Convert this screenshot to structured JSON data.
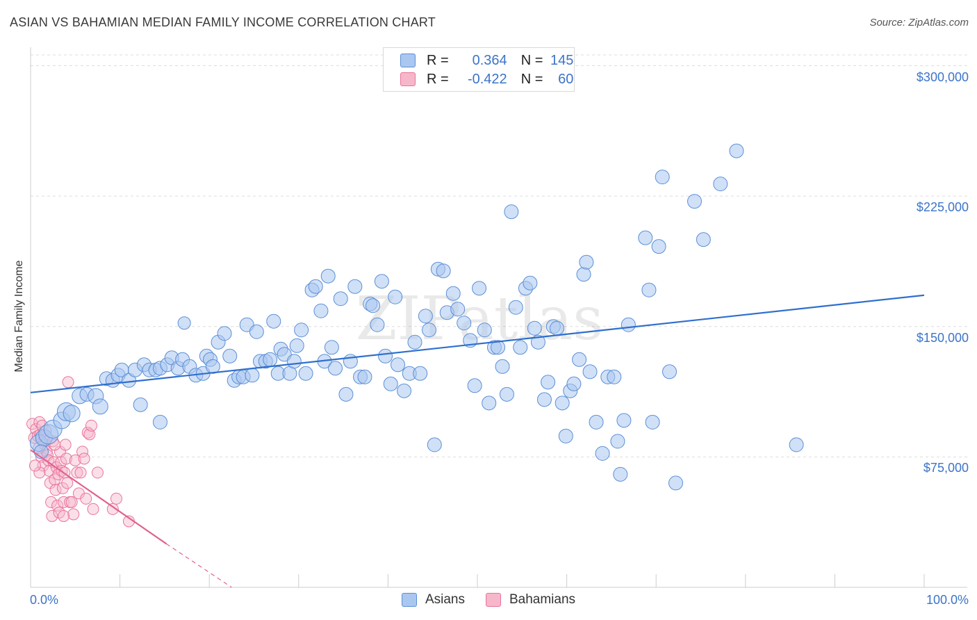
{
  "title": "ASIAN VS BAHAMIAN MEDIAN FAMILY INCOME CORRELATION CHART",
  "source": "Source: ZipAtlas.com",
  "colors": {
    "asians_fill": "#aac7f0",
    "asians_stroke": "#5b8fd6",
    "asians_line": "#2f6fce",
    "bahamians_fill": "#f7b7cb",
    "bahamians_stroke": "#e8739a",
    "bahamians_line": "#e0628f",
    "grid": "#dddddd",
    "tick_text": "#3b74c8"
  },
  "watermark": "ZIPatlas",
  "legend": {
    "items": [
      {
        "r_label": "R =",
        "r_value": "0.364",
        "n_label": "N =",
        "n_value": "145"
      },
      {
        "r_label": "R =",
        "r_value": "-0.422",
        "n_label": "N =",
        "n_value": "60"
      }
    ]
  },
  "bottom_legend": [
    "Asians",
    "Bahamians"
  ],
  "chart_data": {
    "type": "scatter",
    "title": "ASIAN VS BAHAMIAN MEDIAN FAMILY INCOME CORRELATION CHART",
    "xlabel": "",
    "ylabel": "Median Family Income",
    "xlim": [
      0,
      100
    ],
    "ylim": [
      0,
      307000
    ],
    "x_tick_labels": [
      "0.0%",
      "100.0%"
    ],
    "y_ticks": [
      75000,
      150000,
      225000,
      300000
    ],
    "y_tick_labels": [
      "$75,000",
      "$150,000",
      "$225,000",
      "$300,000"
    ],
    "grid": true,
    "series": [
      {
        "name": "Asians",
        "r": 0.364,
        "n": 145,
        "trend": {
          "x": [
            0,
            100
          ],
          "y": [
            112000,
            168000
          ]
        },
        "points": [
          [
            0.9,
            83000,
            12
          ],
          [
            1.5,
            86000,
            12
          ],
          [
            1.2,
            78000,
            10
          ],
          [
            2.0,
            88000,
            14
          ],
          [
            2.5,
            91000,
            13
          ],
          [
            3.5,
            96000,
            12
          ],
          [
            4.0,
            101000,
            13
          ],
          [
            4.6,
            100000,
            12
          ],
          [
            5.5,
            110000,
            11
          ],
          [
            6.3,
            111000,
            10
          ],
          [
            7.3,
            110000,
            11
          ],
          [
            7.8,
            104000,
            11
          ],
          [
            8.5,
            120000,
            10
          ],
          [
            9.2,
            119000,
            10
          ],
          [
            9.8,
            122000,
            10
          ],
          [
            10.2,
            125000,
            10
          ],
          [
            11.0,
            119000,
            10
          ],
          [
            11.7,
            125000,
            10
          ],
          [
            12.3,
            105000,
            10
          ],
          [
            12.7,
            128000,
            10
          ],
          [
            13.3,
            125000,
            10
          ],
          [
            14.0,
            125000,
            10
          ],
          [
            14.5,
            126000,
            10
          ],
          [
            14.5,
            95000,
            10
          ],
          [
            15.3,
            128000,
            10
          ],
          [
            15.8,
            132000,
            10
          ],
          [
            16.5,
            126000,
            10
          ],
          [
            17.0,
            131000,
            10
          ],
          [
            17.2,
            152000,
            9
          ],
          [
            17.8,
            127000,
            10
          ],
          [
            18.5,
            122000,
            10
          ],
          [
            19.3,
            123000,
            10
          ],
          [
            19.7,
            133000,
            10
          ],
          [
            20.1,
            131000,
            10
          ],
          [
            20.4,
            127000,
            10
          ],
          [
            21.0,
            141000,
            10
          ],
          [
            21.7,
            146000,
            10
          ],
          [
            22.3,
            133000,
            10
          ],
          [
            22.8,
            119000,
            10
          ],
          [
            23.3,
            121000,
            10
          ],
          [
            23.8,
            121000,
            10
          ],
          [
            24.2,
            151000,
            10
          ],
          [
            24.8,
            122000,
            10
          ],
          [
            25.3,
            147000,
            10
          ],
          [
            25.7,
            130000,
            10
          ],
          [
            26.3,
            130000,
            10
          ],
          [
            26.8,
            131000,
            10
          ],
          [
            27.2,
            153000,
            10
          ],
          [
            27.7,
            123000,
            10
          ],
          [
            28.0,
            137000,
            10
          ],
          [
            28.4,
            134000,
            10
          ],
          [
            29.0,
            123000,
            10
          ],
          [
            29.5,
            130000,
            10
          ],
          [
            29.8,
            139000,
            10
          ],
          [
            30.3,
            148000,
            10
          ],
          [
            30.8,
            123000,
            10
          ],
          [
            31.5,
            171000,
            10
          ],
          [
            31.9,
            173000,
            10
          ],
          [
            32.5,
            159000,
            10
          ],
          [
            32.9,
            130000,
            10
          ],
          [
            33.3,
            179000,
            10
          ],
          [
            33.7,
            138000,
            10
          ],
          [
            34.1,
            126000,
            10
          ],
          [
            34.7,
            166000,
            10
          ],
          [
            35.3,
            111000,
            10
          ],
          [
            35.8,
            130000,
            10
          ],
          [
            36.3,
            173000,
            10
          ],
          [
            36.9,
            121000,
            10
          ],
          [
            37.4,
            121000,
            10
          ],
          [
            38.0,
            163000,
            10
          ],
          [
            38.3,
            162000,
            10
          ],
          [
            38.8,
            151000,
            10
          ],
          [
            39.3,
            176000,
            10
          ],
          [
            39.7,
            133000,
            10
          ],
          [
            40.3,
            117000,
            10
          ],
          [
            40.8,
            167000,
            10
          ],
          [
            41.1,
            128000,
            10
          ],
          [
            41.8,
            113000,
            10
          ],
          [
            42.4,
            123000,
            10
          ],
          [
            43.0,
            141000,
            10
          ],
          [
            43.6,
            123000,
            10
          ],
          [
            44.2,
            156000,
            10
          ],
          [
            44.6,
            148000,
            10
          ],
          [
            45.2,
            82000,
            10
          ],
          [
            45.6,
            183000,
            10
          ],
          [
            46.2,
            182000,
            10
          ],
          [
            46.6,
            158000,
            10
          ],
          [
            47.3,
            169000,
            10
          ],
          [
            47.8,
            160000,
            10
          ],
          [
            48.5,
            152000,
            10
          ],
          [
            49.2,
            142000,
            10
          ],
          [
            49.7,
            116000,
            10
          ],
          [
            50.2,
            172000,
            10
          ],
          [
            50.8,
            148000,
            10
          ],
          [
            51.3,
            106000,
            10
          ],
          [
            51.9,
            138000,
            10
          ],
          [
            52.3,
            138000,
            10
          ],
          [
            52.8,
            127000,
            10
          ],
          [
            53.3,
            111000,
            10
          ],
          [
            53.8,
            216000,
            10
          ],
          [
            54.3,
            161000,
            10
          ],
          [
            54.8,
            138000,
            10
          ],
          [
            55.4,
            172000,
            10
          ],
          [
            55.9,
            175000,
            10
          ],
          [
            56.4,
            149000,
            10
          ],
          [
            56.8,
            141000,
            10
          ],
          [
            57.5,
            108000,
            10
          ],
          [
            57.9,
            118000,
            10
          ],
          [
            58.5,
            150000,
            10
          ],
          [
            58.9,
            149000,
            10
          ],
          [
            59.5,
            106000,
            10
          ],
          [
            59.9,
            87000,
            10
          ],
          [
            60.4,
            113000,
            10
          ],
          [
            60.8,
            117000,
            10
          ],
          [
            61.4,
            131000,
            10
          ],
          [
            61.9,
            180000,
            10
          ],
          [
            62.2,
            187000,
            10
          ],
          [
            62.6,
            124000,
            10
          ],
          [
            63.3,
            95000,
            10
          ],
          [
            64.0,
            77000,
            10
          ],
          [
            64.6,
            121000,
            10
          ],
          [
            65.3,
            121000,
            10
          ],
          [
            65.7,
            84000,
            10
          ],
          [
            66.0,
            65000,
            10
          ],
          [
            66.4,
            96000,
            10
          ],
          [
            66.9,
            151000,
            10
          ],
          [
            68.8,
            201000,
            10
          ],
          [
            69.2,
            171000,
            10
          ],
          [
            69.6,
            95000,
            10
          ],
          [
            70.3,
            196000,
            10
          ],
          [
            70.7,
            236000,
            10
          ],
          [
            71.5,
            124000,
            10
          ],
          [
            72.2,
            60000,
            10
          ],
          [
            74.3,
            222000,
            10
          ],
          [
            75.3,
            200000,
            10
          ],
          [
            77.2,
            232000,
            10
          ],
          [
            79.0,
            251000,
            10
          ],
          [
            85.7,
            82000,
            10
          ]
        ]
      },
      {
        "name": "Bahamians",
        "r": -0.422,
        "n": 60,
        "trend": {
          "x": [
            0,
            15.2
          ],
          "y": [
            79000,
            25000
          ]
        },
        "trend_dashed": {
          "x": [
            15.2,
            22.5
          ],
          "y": [
            25000,
            0
          ]
        },
        "points": [
          [
            0.2,
            94000
          ],
          [
            0.4,
            86000
          ],
          [
            0.6,
            91000
          ],
          [
            0.8,
            87000
          ],
          [
            0.9,
            80000
          ],
          [
            1.0,
            95000
          ],
          [
            1.1,
            88000
          ],
          [
            1.2,
            75000
          ],
          [
            1.3,
            93000
          ],
          [
            1.4,
            70000
          ],
          [
            1.5,
            85000
          ],
          [
            1.6,
            82000
          ],
          [
            1.7,
            90000
          ],
          [
            1.8,
            78000
          ],
          [
            1.9,
            76000
          ],
          [
            2.0,
            73000
          ],
          [
            2.1,
            67000
          ],
          [
            2.2,
            60000
          ],
          [
            2.3,
            49000
          ],
          [
            2.4,
            41000
          ],
          [
            2.5,
            84000
          ],
          [
            2.6,
            72000
          ],
          [
            2.7,
            62000
          ],
          [
            2.8,
            56000
          ],
          [
            2.9,
            69000
          ],
          [
            3.0,
            47000
          ],
          [
            3.1,
            65000
          ],
          [
            3.2,
            43000
          ],
          [
            3.3,
            78000
          ],
          [
            3.4,
            72000
          ],
          [
            3.5,
            67000
          ],
          [
            3.6,
            57000
          ],
          [
            3.7,
            49000
          ],
          [
            3.8,
            66000
          ],
          [
            3.9,
            82000
          ],
          [
            4.0,
            74000
          ],
          [
            4.1,
            60000
          ],
          [
            4.2,
            118000
          ],
          [
            4.4,
            49000
          ],
          [
            4.6,
            49000
          ],
          [
            4.8,
            42000
          ],
          [
            5.0,
            73000
          ],
          [
            5.2,
            66000
          ],
          [
            5.4,
            54000
          ],
          [
            5.6,
            66000
          ],
          [
            5.8,
            78000
          ],
          [
            6.0,
            74000
          ],
          [
            6.2,
            51000
          ],
          [
            6.4,
            89000
          ],
          [
            6.6,
            88000
          ],
          [
            6.8,
            93000
          ],
          [
            7.0,
            45000
          ],
          [
            7.5,
            66000
          ],
          [
            9.2,
            45000
          ],
          [
            9.6,
            51000
          ],
          [
            11.0,
            38000
          ],
          [
            1.0,
            66000
          ],
          [
            0.5,
            70000
          ],
          [
            2.7,
            82000
          ],
          [
            3.7,
            41000
          ]
        ]
      }
    ]
  }
}
